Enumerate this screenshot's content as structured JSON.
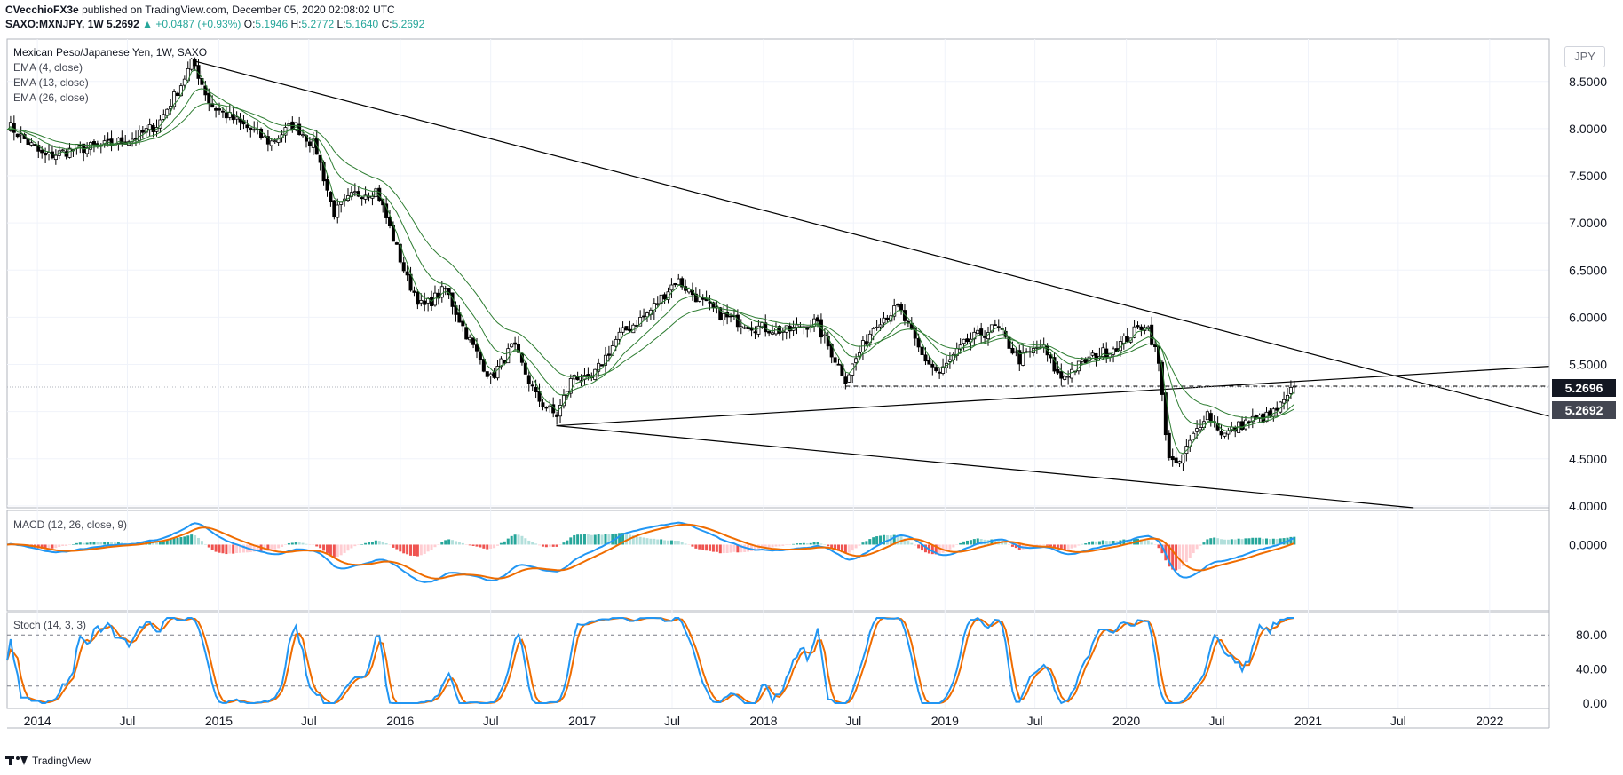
{
  "header": {
    "author": "CVecchioFX3e",
    "published_text": "published on TradingView.com, December 05, 2020 02:08:02 UTC",
    "symbol": "SAXO:MXNJPY, 1W",
    "last": "5.2692",
    "change": "+0.0487 (+0.93%)",
    "o_label": "O:",
    "o": "5.1946",
    "h_label": "H:",
    "h": "5.2772",
    "l_label": "L:",
    "l": "5.1640",
    "c_label": "C:",
    "c": "5.2692"
  },
  "legend": {
    "title": "Mexican Peso/Japanese Yen, 1W, SAXO",
    "ema1": "EMA (4, close)",
    "ema2": "EMA (13, close)",
    "ema3": "EMA (26, close)",
    "macd": "MACD (12, 26, close, 9)",
    "stoch": "Stoch (14, 3, 3)"
  },
  "currency_button": "JPY",
  "price_tags": {
    "tag1": "5.2696",
    "tag2": "5.2692"
  },
  "footer": {
    "brand": "TradingView"
  },
  "colors": {
    "up": "#26a69a",
    "down": "#000000",
    "ema": "#2e7d32",
    "macd_line": "#2196f3",
    "signal_line": "#ef6c00",
    "hist_pos": "#26a69a",
    "hist_pos_light": "#b2dfdb",
    "hist_neg": "#ef5350",
    "hist_neg_light": "#ffcdd2",
    "stoch_k": "#2196f3",
    "stoch_d": "#ef6c00",
    "tag1_bg": "#131722",
    "tag2_bg": "#434651"
  },
  "chart_data": {
    "type": "candlestick",
    "x_start": "2013-11-01",
    "x_end": "2022-05-01",
    "x_ticks": [
      "2014",
      "Jul",
      "2015",
      "Jul",
      "2016",
      "Jul",
      "2017",
      "Jul",
      "2018",
      "Jul",
      "2019",
      "Jul",
      "2020",
      "Jul",
      "2021",
      "Jul",
      "2022"
    ],
    "y_ticks_price": [
      "8.5000",
      "8.0000",
      "7.5000",
      "7.0000",
      "6.5000",
      "6.0000",
      "5.5000",
      "5.0000",
      "4.5000",
      "4.0000"
    ],
    "price_ylim": [
      3.98,
      8.95
    ],
    "price_path": [
      [
        "2013-11-01",
        8.05
      ],
      [
        "2014-01-15",
        7.7
      ],
      [
        "2014-03-15",
        7.78
      ],
      [
        "2014-05-15",
        7.82
      ],
      [
        "2014-07-15",
        7.9
      ],
      [
        "2014-09-01",
        8.05
      ],
      [
        "2014-10-15",
        8.45
      ],
      [
        "2014-11-10",
        8.72
      ],
      [
        "2014-12-15",
        8.25
      ],
      [
        "2015-02-15",
        8.05
      ],
      [
        "2015-04-15",
        7.85
      ],
      [
        "2015-06-01",
        8.05
      ],
      [
        "2015-07-15",
        7.8
      ],
      [
        "2015-08-20",
        7.1
      ],
      [
        "2015-09-30",
        7.3
      ],
      [
        "2015-11-15",
        7.35
      ],
      [
        "2016-01-15",
        6.4
      ],
      [
        "2016-02-15",
        6.1
      ],
      [
        "2016-04-01",
        6.3
      ],
      [
        "2016-05-15",
        5.8
      ],
      [
        "2016-07-01",
        5.35
      ],
      [
        "2016-08-15",
        5.7
      ],
      [
        "2016-10-01",
        5.15
      ],
      [
        "2016-11-10",
        4.95
      ],
      [
        "2016-12-15",
        5.4
      ],
      [
        "2017-01-15",
        5.3
      ],
      [
        "2017-03-15",
        5.8
      ],
      [
        "2017-05-15",
        6.05
      ],
      [
        "2017-07-10",
        6.4
      ],
      [
        "2017-09-01",
        6.15
      ],
      [
        "2017-10-15",
        6.0
      ],
      [
        "2017-12-15",
        5.9
      ],
      [
        "2018-02-15",
        5.85
      ],
      [
        "2018-04-15",
        5.95
      ],
      [
        "2018-06-15",
        5.35
      ],
      [
        "2018-08-15",
        5.95
      ],
      [
        "2018-09-30",
        6.1
      ],
      [
        "2018-11-15",
        5.6
      ],
      [
        "2018-12-20",
        5.4
      ],
      [
        "2019-02-15",
        5.75
      ],
      [
        "2019-04-15",
        5.9
      ],
      [
        "2019-05-30",
        5.55
      ],
      [
        "2019-07-15",
        5.7
      ],
      [
        "2019-08-20",
        5.35
      ],
      [
        "2019-10-15",
        5.55
      ],
      [
        "2019-12-15",
        5.7
      ],
      [
        "2020-02-10",
        5.95
      ],
      [
        "2020-03-05",
        5.55
      ],
      [
        "2020-03-25",
        4.55
      ],
      [
        "2020-04-10",
        4.4
      ],
      [
        "2020-05-01",
        4.6
      ],
      [
        "2020-06-10",
        5.0
      ],
      [
        "2020-07-15",
        4.75
      ],
      [
        "2020-09-01",
        4.9
      ],
      [
        "2020-10-15",
        4.95
      ],
      [
        "2020-11-15",
        5.1
      ],
      [
        "2020-12-04",
        5.2692
      ]
    ],
    "price_path_note": "",
    "ema_periods": [
      4,
      13,
      26
    ],
    "trendlines": [
      {
        "from": [
          "2014-11-10",
          8.72
        ],
        "to": [
          "2020-02-10",
          6.02
        ],
        "extend_to": [
          "2022-05-01",
          4.95
        ]
      },
      {
        "from": [
          "2016-11-10",
          4.85
        ],
        "to": [
          "2021-08-01",
          3.98
        ]
      },
      {
        "from": [
          "2016-11-10",
          4.85
        ],
        "to": [
          "2022-05-01",
          5.48
        ]
      },
      {
        "horizontal": 5.27,
        "from": "2018-06-15",
        "to": "2022-05-01",
        "style": "dashed"
      }
    ],
    "macd": {
      "y_tick": "0.0000",
      "ylim": [
        -0.62,
        0.32
      ]
    },
    "stoch": {
      "y_ticks": [
        "80.00",
        "40.00",
        "0.00"
      ],
      "ylim": [
        0,
        100
      ],
      "bands": [
        80,
        20
      ]
    }
  }
}
